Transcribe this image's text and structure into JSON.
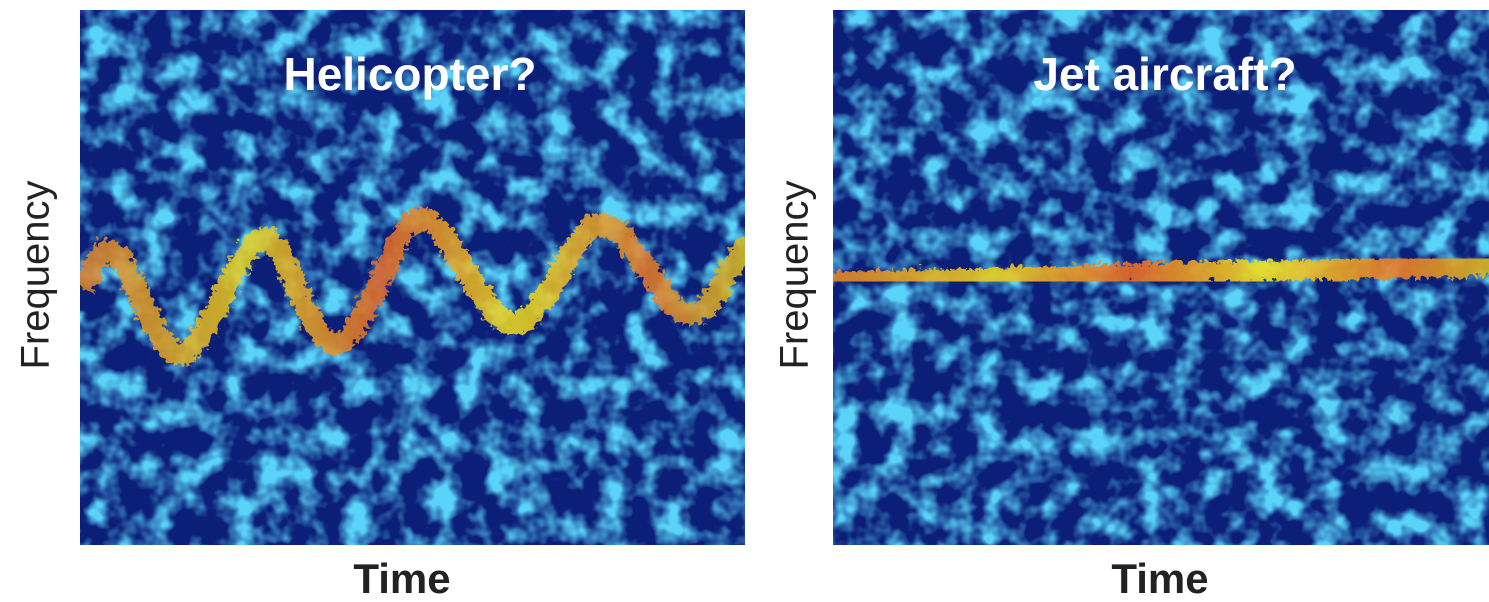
{
  "panels": [
    {
      "title": "Helicopter?",
      "y_label": "Frequency",
      "x_label": "Time"
    },
    {
      "title": "Jet aircraft?",
      "y_label": "Frequency",
      "x_label": "Time"
    }
  ]
}
